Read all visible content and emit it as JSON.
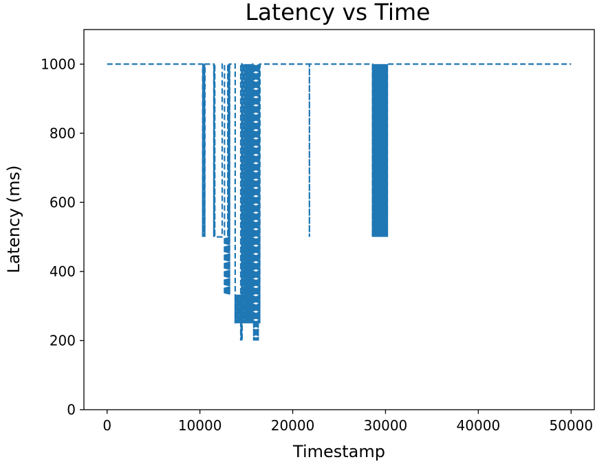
{
  "chart_data": {
    "type": "line",
    "title": "Latency vs Time",
    "xlabel": "Timestamp",
    "ylabel": "Latency (ms)",
    "xlim": [
      -2500,
      52500
    ],
    "ylim": [
      0,
      1100
    ],
    "x_ticks": [
      0,
      10000,
      20000,
      30000,
      40000,
      50000
    ],
    "y_ticks": [
      0,
      200,
      400,
      600,
      800,
      1000
    ],
    "x_tick_labels": [
      "0",
      "10000",
      "20000",
      "30000",
      "40000",
      "50000"
    ],
    "y_tick_labels": [
      "0",
      "200",
      "400",
      "600",
      "800",
      "1000"
    ],
    "grid": false,
    "legend": "none",
    "line_style": "dashed",
    "series": [
      {
        "color": "#1f77b4",
        "baseline": 1000,
        "x_start": 0,
        "x_end": 50000,
        "segments": [
          {
            "x_start": 10300,
            "x_end": 10550,
            "low": 500,
            "high": 1000,
            "step": 55
          },
          {
            "x_start": 11500,
            "x_end": 11600,
            "low": 500,
            "high": 1000,
            "step": 50
          },
          {
            "x_start": 11600,
            "x_end": 12400,
            "low": 500,
            "high": 500,
            "step": 800
          },
          {
            "x_start": 12650,
            "x_end": 13200,
            "low": 333,
            "high": 500,
            "step": 30
          },
          {
            "x_start": 13000,
            "x_end": 13200,
            "low": 500,
            "high": 1000,
            "step": 65
          },
          {
            "x_start": 13800,
            "x_end": 14400,
            "low": 250,
            "high": 333,
            "step": 25
          },
          {
            "x_start": 14400,
            "x_end": 14550,
            "low": 200,
            "high": 333,
            "step": 50
          },
          {
            "x_start": 14500,
            "x_end": 15000,
            "low": 250,
            "high": 1000,
            "step": 70
          },
          {
            "x_start": 15000,
            "x_end": 15700,
            "low": 250,
            "high": 1000,
            "step": 45
          },
          {
            "x_start": 15800,
            "x_end": 16300,
            "low": 200,
            "high": 1000,
            "step": 60
          },
          {
            "x_start": 16300,
            "x_end": 16500,
            "low": 250,
            "high": 1000,
            "step": 70
          },
          {
            "x_start": 21800,
            "x_end": 21800,
            "low": 500,
            "high": 1000,
            "step": 100
          },
          {
            "x_start": 28600,
            "x_end": 30200,
            "low": 500,
            "high": 1000,
            "step": 12
          }
        ]
      }
    ]
  }
}
